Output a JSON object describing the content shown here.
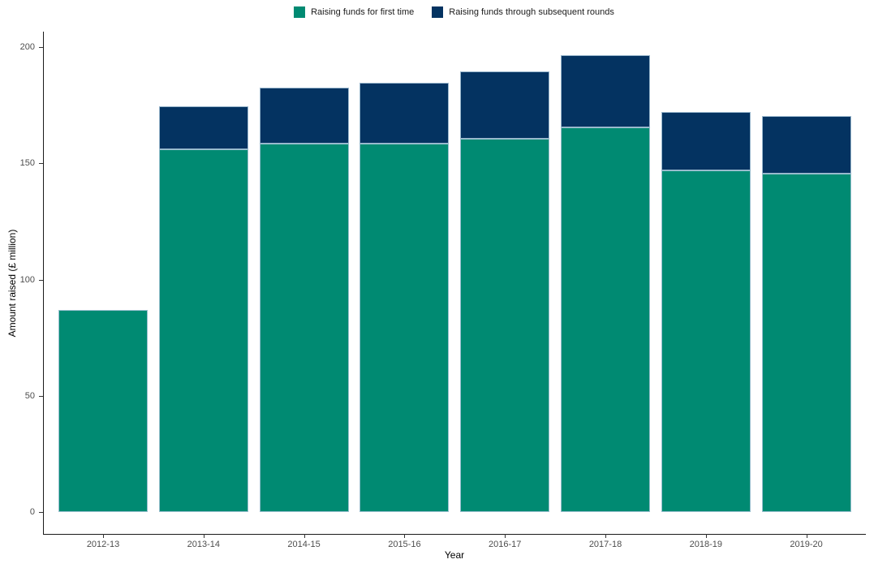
{
  "chart_data": {
    "type": "bar",
    "stacked": true,
    "title": "",
    "xlabel": "Year",
    "ylabel": "Amount raised (£ million)",
    "categories": [
      "2012-13",
      "2013-14",
      "2014-15",
      "2015-16",
      "2016-17",
      "2017-18",
      "2018-19",
      "2019-20"
    ],
    "series": [
      {
        "name": "Raising funds for first time",
        "color": "#008A72",
        "values": [
          87,
          156,
          158.5,
          158.5,
          160.5,
          165.5,
          147,
          145.5
        ]
      },
      {
        "name": "Raising funds through subsequent rounds",
        "color": "#043361",
        "values": [
          0,
          18.5,
          24,
          26,
          29,
          31,
          25,
          25
        ]
      }
    ],
    "totals": [
      87,
      174.5,
      182.5,
      184.5,
      189.5,
      196.5,
      172,
      170.5
    ],
    "ylim": [
      0,
      200
    ],
    "yticks": [
      0,
      50,
      100,
      150,
      200
    ],
    "grid": false,
    "legend_position": "top-center",
    "bar_outline_color": "#A8C4D8",
    "tick_label_color": "#4d4d4d",
    "axis_line_color": "#1a1a1a"
  }
}
